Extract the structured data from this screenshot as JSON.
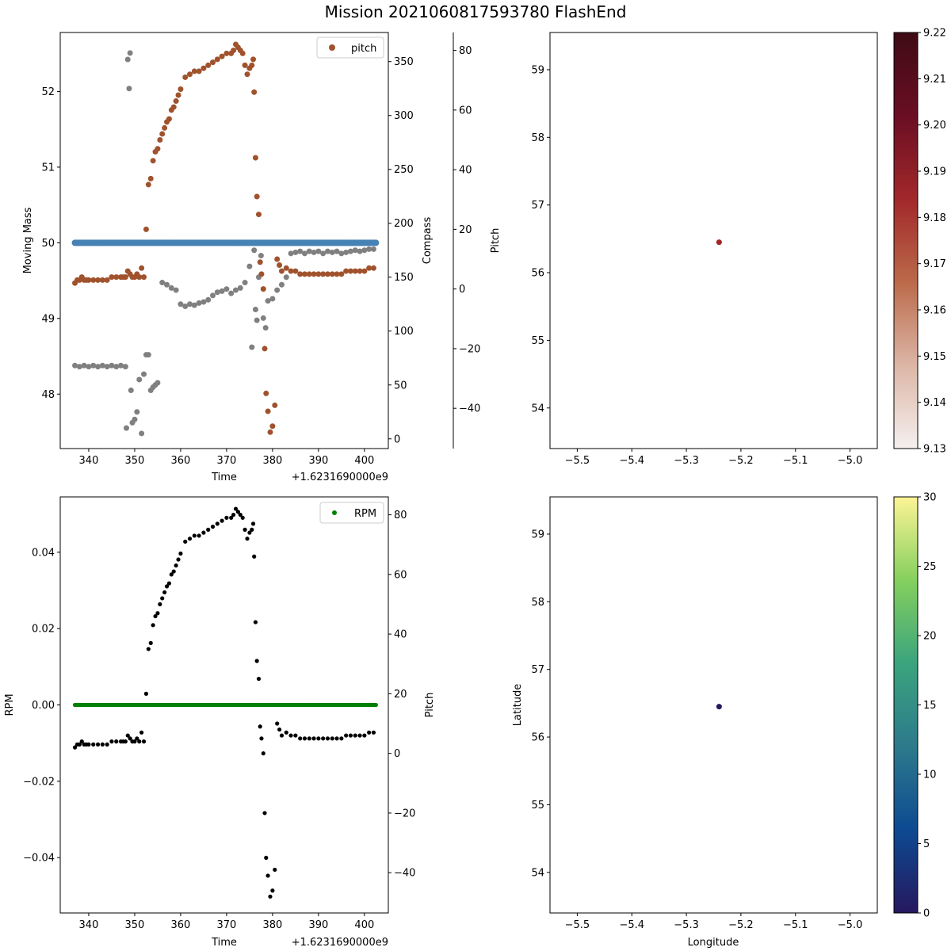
{
  "figure": {
    "title": "Mission 2021060817593780 FlashEnd",
    "colors": {
      "moving_mass": "#4682b4",
      "compass": "#808080",
      "pitch": "#a0522d",
      "rpm": "#008000",
      "pitch_bottom": "#000000"
    }
  },
  "chart_data": [
    {
      "type": "scatter",
      "panel": "top-left",
      "xlabel": "Time",
      "x_offset_label": "+1.6231690000e9",
      "xlim": [
        333.8,
        405.2
      ],
      "xticks": [
        340,
        350,
        360,
        370,
        380,
        390,
        400
      ],
      "axes": {
        "left": {
          "label": "Moving Mass",
          "lim": [
            47.28,
            52.78
          ],
          "ticks": [
            48,
            49,
            50,
            51,
            52
          ]
        },
        "right": {
          "label": "Compass",
          "lim": [
            -9,
            377
          ],
          "ticks": [
            0,
            50,
            100,
            150,
            200,
            250,
            300,
            350
          ]
        },
        "pitch": {
          "label": "Pitch",
          "lim": [
            -53.5,
            86
          ],
          "ticks": [
            -40,
            -20,
            0,
            20,
            40,
            60,
            80
          ]
        }
      },
      "legend": {
        "position": "top-right",
        "entries": [
          "pitch"
        ]
      },
      "series": [
        {
          "name": "",
          "role": "moving_mass",
          "axis": "left",
          "constant": 50.0,
          "x_range": [
            337,
            402.5
          ]
        },
        {
          "name": "",
          "role": "compass",
          "axis": "right",
          "x": [
            337,
            338,
            339,
            340,
            341,
            342,
            343,
            344,
            345,
            346,
            347,
            348,
            348.2,
            348.5,
            348.8,
            349,
            349.2,
            349.5,
            350,
            350.5,
            351,
            351.5,
            352,
            352.5,
            353,
            353.5,
            354,
            354.5,
            355,
            356,
            357,
            358,
            359,
            360,
            361,
            362,
            363,
            364,
            365,
            366,
            367,
            368,
            369,
            370,
            371,
            372,
            373,
            374,
            375,
            375.5,
            376,
            376.3,
            376.6,
            377,
            377.5,
            378,
            378.5,
            379,
            380,
            381,
            382,
            383,
            384,
            385,
            386,
            387,
            388,
            389,
            390,
            391,
            392,
            393,
            394,
            395,
            396,
            397,
            398,
            399,
            400,
            401,
            402
          ],
          "y": [
            68,
            67,
            68,
            67,
            68,
            67,
            68,
            67,
            68,
            67,
            68,
            67,
            10,
            352,
            325,
            358,
            45,
            15,
            18,
            25,
            55,
            5,
            60,
            78,
            78,
            45,
            48,
            50,
            52,
            145,
            143,
            140,
            138,
            125,
            123,
            125,
            124,
            126,
            127,
            129,
            133,
            136,
            137,
            139,
            135,
            138,
            140,
            145,
            160,
            85,
            175,
            120,
            110,
            150,
            170,
            112,
            103,
            128,
            130,
            138,
            143,
            150,
            172,
            173,
            174,
            172,
            174,
            173,
            174,
            172,
            174,
            173,
            174,
            172,
            173,
            174,
            175,
            174,
            175,
            176,
            176
          ]
        },
        {
          "name": "pitch",
          "role": "pitch",
          "axis": "pitch",
          "x": [
            337,
            337.5,
            338,
            338.5,
            339,
            339.5,
            340,
            341,
            342,
            343,
            344,
            345,
            346,
            347,
            347.5,
            348,
            348.5,
            349,
            349.5,
            350,
            350.5,
            351,
            351.5,
            352,
            352.5,
            353,
            353.5,
            354,
            354.5,
            355,
            355.5,
            356,
            356.5,
            357,
            357.5,
            358,
            358.5,
            359,
            359.5,
            360,
            361,
            362,
            363,
            364,
            365,
            366,
            367,
            368,
            369,
            370,
            371,
            371.5,
            372,
            372.5,
            373,
            373.5,
            374,
            374.5,
            375,
            375.5,
            375.8,
            376,
            376.3,
            376.6,
            377,
            377.3,
            377.6,
            378,
            378.3,
            378.6,
            379,
            379.5,
            380,
            380.5,
            381,
            381.5,
            382,
            383,
            384,
            385,
            386,
            387,
            388,
            389,
            390,
            391,
            392,
            393,
            394,
            395,
            396,
            397,
            398,
            399,
            400,
            401,
            402
          ],
          "y": [
            2,
            3,
            3,
            4,
            3,
            3,
            3,
            3,
            3,
            3,
            3,
            4,
            4,
            4,
            4,
            4,
            6,
            5,
            4,
            4,
            5,
            4,
            7,
            4,
            20,
            35,
            37,
            43,
            46,
            47,
            50,
            52,
            54,
            56,
            57,
            60,
            61,
            63,
            65,
            67,
            71,
            72,
            73,
            73,
            74,
            75,
            76,
            77,
            78,
            79,
            79,
            80,
            82,
            81,
            80,
            79,
            75,
            72,
            74,
            75,
            77,
            66,
            44,
            31,
            25,
            9,
            5,
            0,
            -20,
            -35,
            -41,
            -48,
            -46,
            -39,
            10,
            8,
            6,
            7,
            6,
            6,
            5,
            5,
            5,
            5,
            5,
            5,
            5,
            5,
            5,
            5,
            6,
            6,
            6,
            6,
            6,
            7,
            7
          ]
        }
      ]
    },
    {
      "type": "scatter",
      "panel": "top-right",
      "xlim": [
        -5.55,
        -4.95
      ],
      "ylim": [
        53.4,
        59.55
      ],
      "xticks": [
        -5.5,
        -5.4,
        -5.3,
        -5.2,
        -5.1,
        -5.0
      ],
      "yticks": [
        54,
        55,
        56,
        57,
        58,
        59
      ],
      "points": [
        {
          "x": -5.24,
          "y": 56.45,
          "value": 9.18
        }
      ],
      "colorbar": {
        "lim": [
          9.13,
          9.22
        ],
        "ticks": [
          "9.13",
          "9.14",
          "9.15",
          "9.16",
          "9.17",
          "9.18",
          "9.19",
          "9.20",
          "9.21",
          "9.22"
        ],
        "stops": [
          "#f5f0ef",
          "#dcb6a6",
          "#bb6a4a",
          "#a1282a",
          "#6a0e23",
          "#3e0b14"
        ]
      }
    },
    {
      "type": "scatter",
      "panel": "bottom-left",
      "xlabel": "Time",
      "x_offset_label": "+1.6231690000e9",
      "xlim": [
        333.8,
        405.2
      ],
      "xticks": [
        340,
        350,
        360,
        370,
        380,
        390,
        400
      ],
      "axes": {
        "left": {
          "label": "RPM",
          "lim": [
            -0.0545,
            0.0545
          ],
          "ticks": [
            -0.04,
            -0.02,
            0.0,
            0.02,
            0.04
          ]
        },
        "right": {
          "label": "Pitch",
          "lim": [
            -53.5,
            86
          ],
          "ticks": [
            -40,
            -20,
            0,
            20,
            40,
            60,
            80
          ]
        }
      },
      "legend": {
        "position": "top-right",
        "entries": [
          "RPM"
        ]
      },
      "series": [
        {
          "name": "RPM",
          "role": "rpm",
          "axis": "left",
          "constant": 0.0,
          "x_range": [
            337,
            402.5
          ]
        },
        {
          "name": "",
          "role": "pitch_bottom",
          "axis": "right",
          "same_as": "pitch"
        }
      ]
    },
    {
      "type": "scatter",
      "panel": "bottom-right",
      "xlabel": "Longitude",
      "ylabel": "Latitude",
      "xlim": [
        -5.55,
        -4.95
      ],
      "ylim": [
        53.4,
        59.55
      ],
      "xticks": [
        -5.5,
        -5.4,
        -5.3,
        -5.2,
        -5.1,
        -5.0
      ],
      "yticks": [
        54,
        55,
        56,
        57,
        58,
        59
      ],
      "points": [
        {
          "x": -5.24,
          "y": 56.45,
          "value": 0.5
        }
      ],
      "colorbar": {
        "lim": [
          0,
          30
        ],
        "ticks": [
          "0",
          "5",
          "10",
          "15",
          "20",
          "25",
          "30"
        ],
        "stops": [
          "#26185f",
          "#0d4a91",
          "#2d7a8c",
          "#3ba47d",
          "#85d05e",
          "#fdf495"
        ]
      }
    }
  ]
}
